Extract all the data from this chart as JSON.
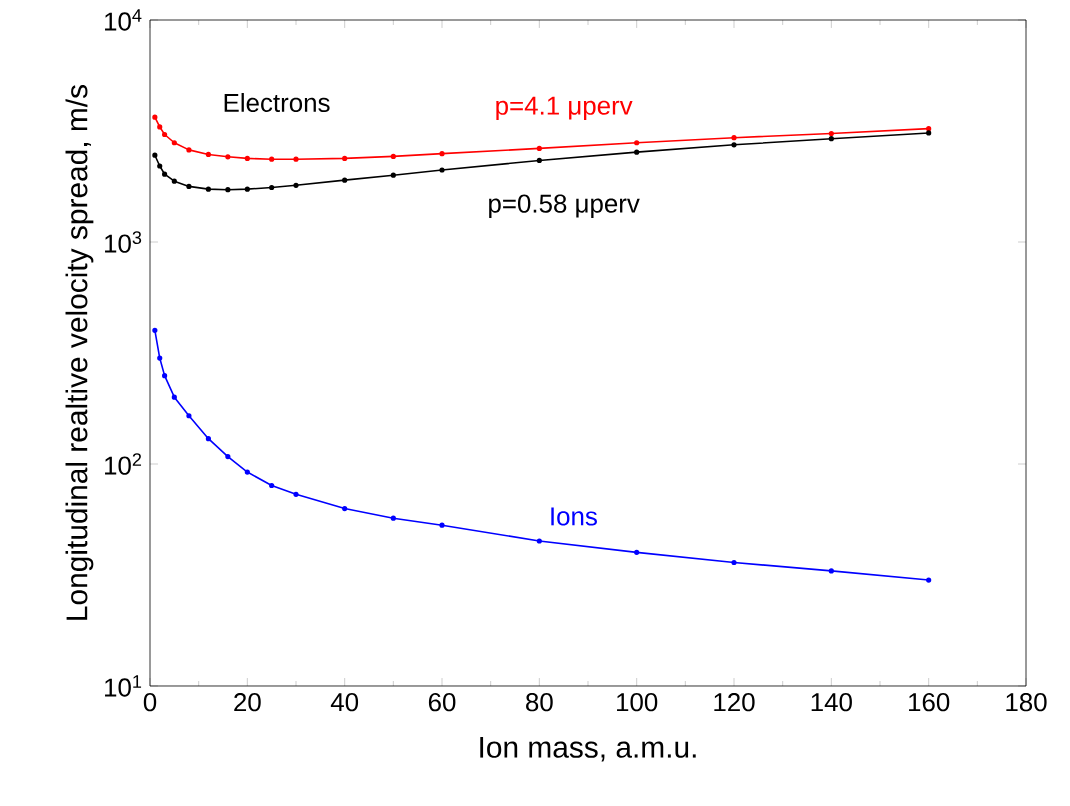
{
  "chart_data": {
    "type": "line",
    "xlabel": "Ion mass, a.m.u.",
    "ylabel": "Longitudinal realtive velocity spread, m/s",
    "log": "y",
    "xlim": [
      0,
      180
    ],
    "ylim": [
      10,
      10000
    ],
    "xticks": [
      0,
      20,
      40,
      60,
      80,
      100,
      120,
      140,
      160,
      180
    ],
    "yticks": [
      {
        "value": 10,
        "label": "10$^{1}$"
      },
      {
        "value": 100,
        "label": "10$^{2}$"
      },
      {
        "value": 1000,
        "label": "10$^{3}$"
      },
      {
        "value": 10000,
        "label": "10$^{4}$"
      }
    ],
    "grid": false,
    "legend": false,
    "marker": "circle",
    "line_style": "solid",
    "annotations": [
      "Electrons"
    ],
    "series": [
      {
        "name": "p=4.1 μperv",
        "color": "#ff0000",
        "x": [
          1,
          2,
          3,
          5,
          8,
          12,
          16,
          20,
          25,
          30,
          40,
          50,
          60,
          80,
          100,
          120,
          140,
          160
        ],
        "values": [
          3650,
          3300,
          3050,
          2800,
          2600,
          2480,
          2420,
          2380,
          2360,
          2360,
          2380,
          2430,
          2500,
          2640,
          2800,
          2950,
          3080,
          3240
        ]
      },
      {
        "name": "p=0.58 μperv",
        "color": "#000000",
        "x": [
          1,
          2,
          3,
          5,
          8,
          12,
          16,
          20,
          25,
          30,
          40,
          50,
          60,
          80,
          100,
          120,
          140,
          160
        ],
        "values": [
          2460,
          2200,
          2020,
          1880,
          1780,
          1730,
          1720,
          1730,
          1760,
          1800,
          1900,
          2000,
          2110,
          2330,
          2540,
          2740,
          2920,
          3100
        ]
      },
      {
        "name": "Ions",
        "color": "#0000ff",
        "x": [
          1,
          2,
          3,
          5,
          8,
          12,
          16,
          20,
          25,
          30,
          40,
          50,
          60,
          80,
          100,
          120,
          140,
          160
        ],
        "values": [
          400,
          300,
          250,
          200,
          165,
          130,
          108,
          92,
          80,
          73,
          63,
          57,
          53,
          45,
          40,
          36,
          33,
          30
        ]
      }
    ]
  }
}
